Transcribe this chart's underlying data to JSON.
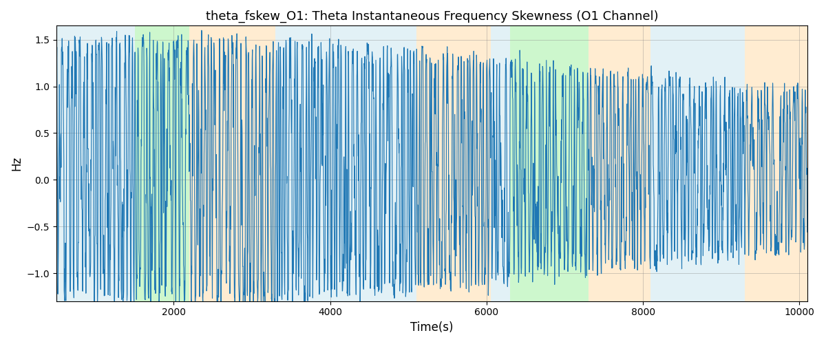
{
  "title": "theta_fskew_O1: Theta Instantaneous Frequency Skewness (O1 Channel)",
  "xlabel": "Time(s)",
  "ylabel": "Hz",
  "xlim": [
    500,
    10100
  ],
  "ylim": [
    -1.3,
    1.65
  ],
  "yticks": [
    -1.0,
    -0.5,
    0.0,
    0.5,
    1.0,
    1.5
  ],
  "xticks": [
    2000,
    4000,
    6000,
    8000,
    10000
  ],
  "line_color": "#1f77b4",
  "line_width": 0.8,
  "bg_bands": [
    {
      "xmin": 500,
      "xmax": 1500,
      "color": "#add8e6",
      "alpha": 0.35
    },
    {
      "xmin": 1500,
      "xmax": 2200,
      "color": "#90ee90",
      "alpha": 0.45
    },
    {
      "xmin": 2200,
      "xmax": 3300,
      "color": "#ffd699",
      "alpha": 0.45
    },
    {
      "xmin": 3300,
      "xmax": 5100,
      "color": "#add8e6",
      "alpha": 0.35
    },
    {
      "xmin": 5100,
      "xmax": 6050,
      "color": "#ffd699",
      "alpha": 0.45
    },
    {
      "xmin": 6050,
      "xmax": 6300,
      "color": "#add8e6",
      "alpha": 0.35
    },
    {
      "xmin": 6300,
      "xmax": 7300,
      "color": "#90ee90",
      "alpha": 0.45
    },
    {
      "xmin": 7300,
      "xmax": 8100,
      "color": "#ffd699",
      "alpha": 0.45
    },
    {
      "xmin": 8100,
      "xmax": 9300,
      "color": "#add8e6",
      "alpha": 0.35
    },
    {
      "xmin": 9300,
      "xmax": 10100,
      "color": "#ffd699",
      "alpha": 0.45
    }
  ],
  "seed": 42,
  "n_points": 3000
}
